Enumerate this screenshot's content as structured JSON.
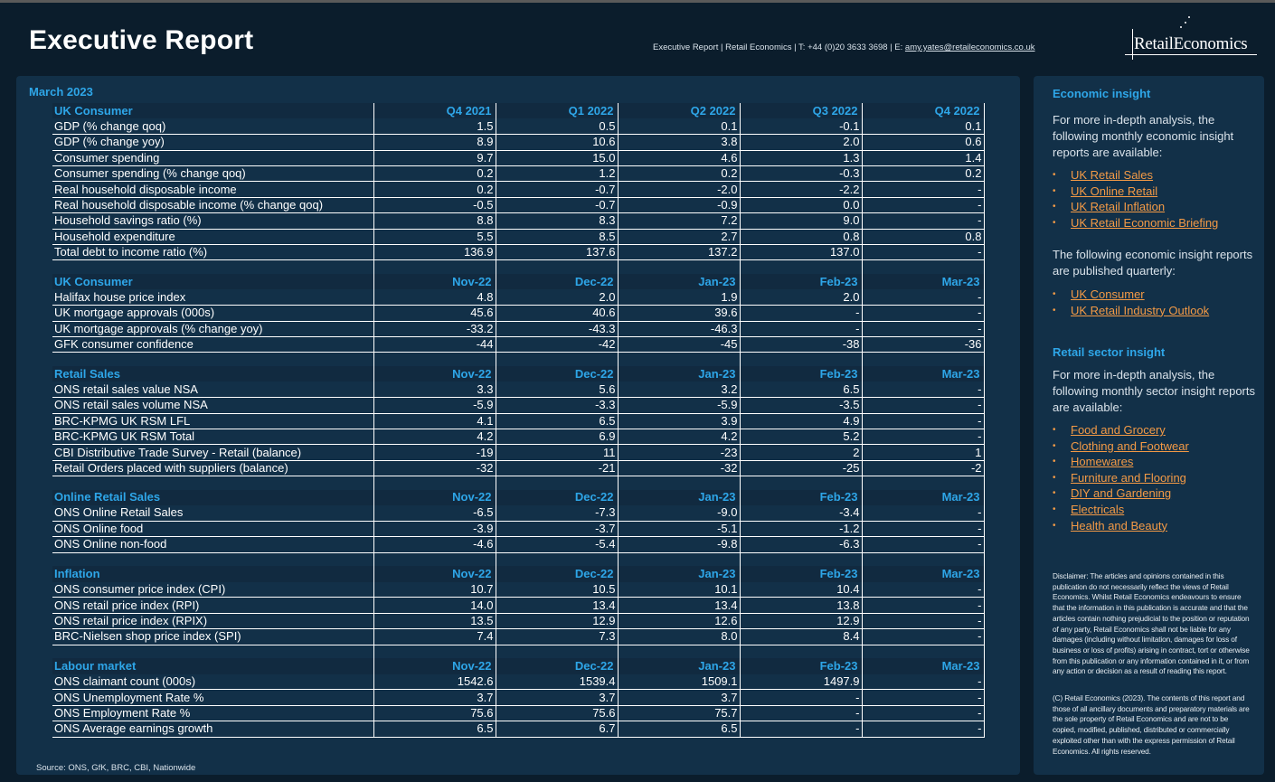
{
  "header": {
    "title": "Executive Report",
    "contact_prefix": "Executive Report | Retail Economics | T: +44 (0)20 3633 3698 | E: ",
    "contact_email": "amy.yates@retaileconomics.co.uk",
    "logo_text": "RetailEconomics"
  },
  "main": {
    "report_date": "March 2023",
    "source": "Source: ONS, GfK, BRC, CBI, Nationwide",
    "sections": [
      {
        "title": "UK Consumer",
        "columns": [
          "Q4 2021",
          "Q1 2022",
          "Q2 2022",
          "Q3 2022",
          "Q4 2022"
        ],
        "rows": [
          {
            "label": "GDP (% change qoq)",
            "values": [
              "1.5",
              "0.5",
              "0.1",
              "-0.1",
              "0.1"
            ]
          },
          {
            "label": "GDP (% change yoy)",
            "values": [
              "8.9",
              "10.6",
              "3.8",
              "2.0",
              "0.6"
            ]
          },
          {
            "label": "Consumer spending",
            "values": [
              "9.7",
              "15.0",
              "4.6",
              "1.3",
              "1.4"
            ]
          },
          {
            "label": "Consumer spending (% change qoq)",
            "values": [
              "0.2",
              "1.2",
              "0.2",
              "-0.3",
              "0.2"
            ]
          },
          {
            "label": "Real household disposable income",
            "values": [
              "0.2",
              "-0.7",
              "-2.0",
              "-2.2",
              "-"
            ]
          },
          {
            "label": "Real household disposable income (% change qoq)",
            "values": [
              "-0.5",
              "-0.7",
              "-0.9",
              "0.0",
              "-"
            ]
          },
          {
            "label": "Household savings ratio (%)",
            "values": [
              "8.8",
              "8.3",
              "7.2",
              "9.0",
              "-"
            ]
          },
          {
            "label": "Household expenditure",
            "values": [
              "5.5",
              "8.5",
              "2.7",
              "0.8",
              "0.8"
            ]
          },
          {
            "label": "Total debt to income ratio (%)",
            "values": [
              "136.9",
              "137.6",
              "137.2",
              "137.0",
              "-"
            ]
          }
        ]
      },
      {
        "title": "UK Consumer",
        "columns": [
          "Nov-22",
          "Dec-22",
          "Jan-23",
          "Feb-23",
          "Mar-23"
        ],
        "rows": [
          {
            "label": "Halifax house price index",
            "values": [
              "4.8",
              "2.0",
              "1.9",
              "2.0",
              "-"
            ]
          },
          {
            "label": "UK mortgage approvals (000s)",
            "values": [
              "45.6",
              "40.6",
              "39.6",
              "-",
              "-"
            ]
          },
          {
            "label": "UK mortgage approvals (% change yoy)",
            "values": [
              "-33.2",
              "-43.3",
              "-46.3",
              "-",
              "-"
            ]
          },
          {
            "label": "GFK consumer confidence",
            "values": [
              "-44",
              "-42",
              "-45",
              "-38",
              "-36"
            ]
          }
        ]
      },
      {
        "title": "Retail Sales",
        "columns": [
          "Nov-22",
          "Dec-22",
          "Jan-23",
          "Feb-23",
          "Mar-23"
        ],
        "rows": [
          {
            "label": "ONS retail sales value NSA",
            "values": [
              "3.3",
              "5.6",
              "3.2",
              "6.5",
              "-"
            ]
          },
          {
            "label": "ONS retail sales volume NSA",
            "values": [
              "-5.9",
              "-3.3",
              "-5.9",
              "-3.5",
              "-"
            ]
          },
          {
            "label": "BRC-KPMG UK RSM LFL",
            "values": [
              "4.1",
              "6.5",
              "3.9",
              "4.9",
              "-"
            ]
          },
          {
            "label": "BRC-KPMG UK RSM Total",
            "values": [
              "4.2",
              "6.9",
              "4.2",
              "5.2",
              "-"
            ]
          },
          {
            "label": "CBI Distributive Trade Survey - Retail (balance)",
            "values": [
              "-19",
              "11",
              "-23",
              "2",
              "1"
            ]
          },
          {
            "label": "Retail Orders placed with suppliers (balance)",
            "values": [
              "-32",
              "-21",
              "-32",
              "-25",
              "-2"
            ]
          }
        ]
      },
      {
        "title": "Online Retail Sales",
        "columns": [
          "Nov-22",
          "Dec-22",
          "Jan-23",
          "Feb-23",
          "Mar-23"
        ],
        "rows": [
          {
            "label": "ONS Online Retail Sales",
            "values": [
              "-6.5",
              "-7.3",
              "-9.0",
              "-3.4",
              "-"
            ]
          },
          {
            "label": "ONS Online food",
            "values": [
              "-3.9",
              "-3.7",
              "-5.1",
              "-1.2",
              "-"
            ]
          },
          {
            "label": "ONS Online non-food",
            "values": [
              "-4.6",
              "-5.4",
              "-9.8",
              "-6.3",
              "-"
            ]
          }
        ]
      },
      {
        "title": "Inflation",
        "columns": [
          "Nov-22",
          "Dec-22",
          "Jan-23",
          "Feb-23",
          "Mar-23"
        ],
        "rows": [
          {
            "label": "ONS consumer price index (CPI)",
            "values": [
              "10.7",
              "10.5",
              "10.1",
              "10.4",
              "-"
            ]
          },
          {
            "label": "ONS retail price index (RPI)",
            "values": [
              "14.0",
              "13.4",
              "13.4",
              "13.8",
              "-"
            ]
          },
          {
            "label": "ONS retail price index (RPIX)",
            "values": [
              "13.5",
              "12.9",
              "12.6",
              "12.9",
              "-"
            ]
          },
          {
            "label": "BRC-Nielsen shop price index (SPI)",
            "values": [
              "7.4",
              "7.3",
              "8.0",
              "8.4",
              "-"
            ]
          }
        ]
      },
      {
        "title": "Labour market",
        "columns": [
          "Nov-22",
          "Dec-22",
          "Jan-23",
          "Feb-23",
          "Mar-23"
        ],
        "rows": [
          {
            "label": "ONS claimant count (000s)",
            "values": [
              "1542.6",
              "1539.4",
              "1509.1",
              "1497.9",
              "-"
            ]
          },
          {
            "label": "ONS Unemployment Rate %",
            "values": [
              "3.7",
              "3.7",
              "3.7",
              "-",
              "-"
            ]
          },
          {
            "label": "ONS Employment Rate %",
            "values": [
              "75.6",
              "75.6",
              "75.7",
              "-",
              "-"
            ]
          },
          {
            "label": "ONS Average earnings growth",
            "values": [
              "6.5",
              "6.7",
              "6.5",
              "-",
              "-"
            ]
          }
        ]
      }
    ]
  },
  "sidebar": {
    "economic_heading": "Economic insight",
    "economic_intro": "For more in-depth analysis, the following monthly economic insight reports are available:",
    "economic_monthly": [
      "UK Retail Sales",
      "UK Online Retail",
      "UK Retail Inflation",
      "UK Retail Economic Briefing"
    ],
    "economic_quarterly_intro": "The following economic insight reports are published quarterly:",
    "economic_quarterly": [
      "UK Consumer",
      "UK Retail Industry Outlook"
    ],
    "sector_heading": "Retail sector insight",
    "sector_intro": "For more in-depth analysis, the following monthly sector insight reports are available:",
    "sector_reports": [
      "Food and Grocery",
      "Clothing and Footwear",
      "Homewares",
      "Furniture and Flooring",
      "DIY and Gardening",
      "Electricals",
      "Health and Beauty"
    ],
    "disclaimer": "Disclaimer: The articles and opinions contained in this publication do not necessarily reflect the views of Retail Economics. Whilst Retail Economics endeavours to ensure that the information in this publication is accurate and that the articles contain nothing prejudicial to the position or reputation of any party, Retail Economics shall not be liable for any damages (including without limitation, damages for loss of business or loss of profits) arising in contract, tort or otherwise from this publication or any information contained in it, or from any action or decision as a result of reading this report.",
    "copyright": "(C) Retail Economics (2023). The contents of this report and those of all ancillary documents and preparatory materials are the sole property of Retail Economics and are not to be copied, modified, published, distributed or commercially exploited other than with the express permission of Retail Economics. All rights reserved."
  },
  "colors": {
    "background": "#0b1d2c",
    "panel": "#123048",
    "accent_blue": "#2ea6e8",
    "link_orange": "#f39a46"
  }
}
